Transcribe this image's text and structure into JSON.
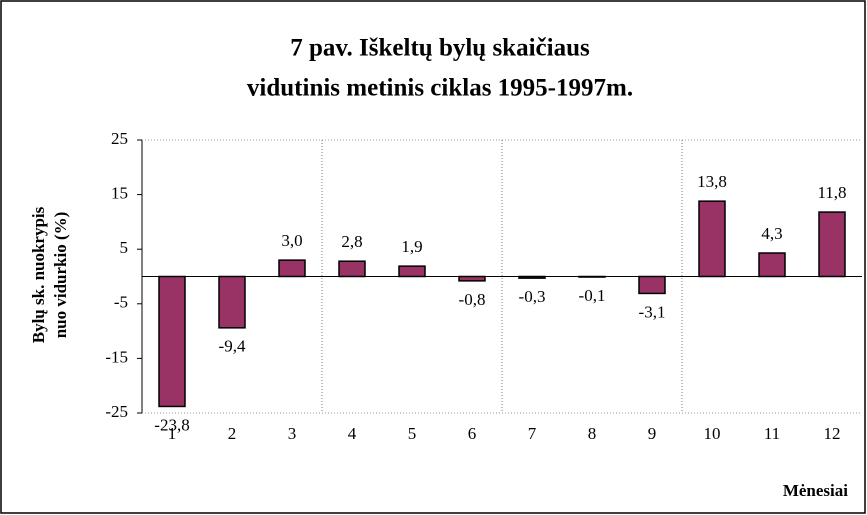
{
  "chart_data": {
    "type": "bar",
    "title": [
      "7 pav. Iškeltų bylų skaičiaus",
      "vidutinis metinis ciklas 1995-1997m."
    ],
    "y_label": [
      "Bylų sk. nuokrypis",
      "nuo vidurkio (%)"
    ],
    "x_label": "Mėnesiai",
    "categories": [
      "1",
      "2",
      "3",
      "4",
      "5",
      "6",
      "7",
      "8",
      "9",
      "10",
      "11",
      "12"
    ],
    "values": [
      -23.8,
      -9.4,
      3.0,
      2.8,
      1.9,
      -0.8,
      -0.3,
      -0.1,
      -3.1,
      13.8,
      4.3,
      11.8
    ],
    "value_labels": [
      "-23,8",
      "-9,4",
      "3,0",
      "2,8",
      "1,9",
      "-0,8",
      "-0,3",
      "-0,1",
      "-3,1",
      "13,8",
      "4,3",
      "11,8"
    ],
    "color": "#993366",
    "ylim": [
      -25,
      25
    ],
    "yticks": [
      -25,
      -15,
      -5,
      5,
      15,
      25
    ]
  }
}
